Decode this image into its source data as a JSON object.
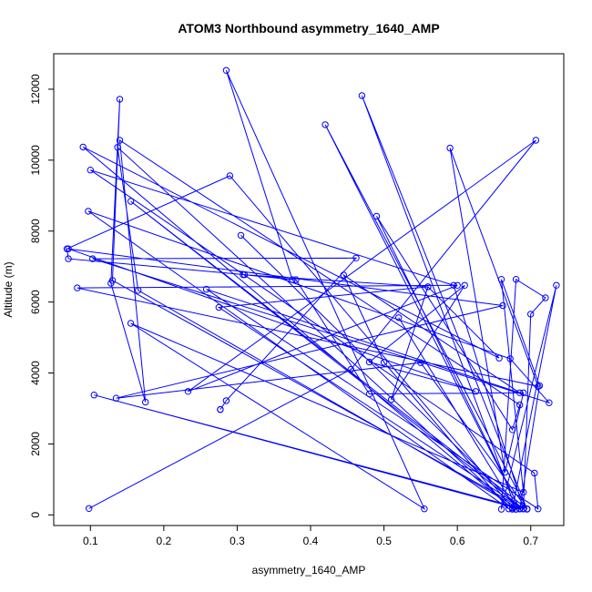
{
  "chart_data": {
    "type": "scatter",
    "title": "ATOM3 Northbound asymmetry_1640_AMP",
    "xlabel": "asymmetry_1640_AMP",
    "ylabel": "Altitude (m)",
    "xlim": [
      0.05,
      0.745
    ],
    "ylim": [
      -300,
      13000
    ],
    "xticks": [
      0.1,
      0.2,
      0.3,
      0.4,
      0.5,
      0.6,
      0.7
    ],
    "xtick_labels": [
      "0.1",
      "0.2",
      "0.3",
      "0.4",
      "0.5",
      "0.6",
      "0.7"
    ],
    "yticks": [
      0,
      2000,
      4000,
      6000,
      8000,
      10000,
      12000
    ],
    "ytick_labels": [
      "0",
      "2000",
      "4000",
      "6000",
      "8000",
      "10000",
      "12000"
    ],
    "grid": false,
    "connected": true,
    "color": "#0000ff",
    "points": [
      [
        0.098,
        180
      ],
      [
        0.455,
        4100
      ],
      [
        0.707,
        10560
      ],
      [
        0.233,
        3480
      ],
      [
        0.6,
        6470
      ],
      [
        0.082,
        6400
      ],
      [
        0.71,
        3620
      ],
      [
        0.59,
        10340
      ],
      [
        0.665,
        1200
      ],
      [
        0.69,
        3440
      ],
      [
        0.48,
        3410
      ],
      [
        0.38,
        6630
      ],
      [
        0.308,
        6770
      ],
      [
        0.56,
        6430
      ],
      [
        0.51,
        3250
      ],
      [
        0.61,
        6470
      ],
      [
        0.48,
        4310
      ],
      [
        0.625,
        3480
      ],
      [
        0.07,
        7500
      ],
      [
        0.662,
        5900
      ],
      [
        0.135,
        3290
      ],
      [
        0.55,
        4290
      ],
      [
        0.695,
        160
      ],
      [
        0.47,
        11820
      ],
      [
        0.68,
        160
      ],
      [
        0.52,
        5560
      ],
      [
        0.68,
        160
      ],
      [
        0.675,
        160
      ],
      [
        0.735,
        6470
      ],
      [
        0.66,
        160
      ],
      [
        0.68,
        6640
      ],
      [
        0.72,
        6120
      ],
      [
        0.7,
        5660
      ],
      [
        0.69,
        170
      ],
      [
        0.13,
        6610
      ],
      [
        0.14,
        11720
      ],
      [
        0.128,
        6530
      ],
      [
        0.175,
        3180
      ],
      [
        0.14,
        10560
      ],
      [
        0.685,
        3100
      ],
      [
        0.675,
        2400
      ],
      [
        0.49,
        8420
      ],
      [
        0.685,
        170
      ],
      [
        0.305,
        7880
      ],
      [
        0.685,
        170
      ],
      [
        0.165,
        6330
      ],
      [
        0.137,
        10360
      ],
      [
        0.675,
        170
      ],
      [
        0.09,
        10370
      ],
      [
        0.657,
        4420
      ],
      [
        0.56,
        6430
      ],
      [
        0.275,
        5850
      ],
      [
        0.69,
        170
      ],
      [
        0.105,
        3380
      ],
      [
        0.685,
        170
      ],
      [
        0.675,
        200
      ],
      [
        0.29,
        9560
      ],
      [
        0.068,
        7500
      ],
      [
        0.07,
        7220
      ],
      [
        0.31,
        6770
      ],
      [
        0.375,
        6630
      ],
      [
        0.285,
        12530
      ],
      [
        0.555,
        170
      ],
      [
        0.155,
        5400
      ],
      [
        0.69,
        640
      ],
      [
        0.66,
        6640
      ],
      [
        0.712,
        3640
      ],
      [
        0.685,
        170
      ],
      [
        0.42,
        11000
      ],
      [
        0.695,
        170
      ],
      [
        0.155,
        8840
      ],
      [
        0.69,
        170
      ],
      [
        0.595,
        6470
      ],
      [
        0.1,
        9720
      ],
      [
        0.705,
        1180
      ],
      [
        0.71,
        170
      ],
      [
        0.258,
        6360
      ],
      [
        0.685,
        3440
      ],
      [
        0.445,
        6760
      ],
      [
        0.5,
        4300
      ],
      [
        0.67,
        170
      ],
      [
        0.097,
        8560
      ],
      [
        0.672,
        4400
      ],
      [
        0.725,
        3160
      ],
      [
        0.103,
        7220
      ],
      [
        0.462,
        7240
      ],
      [
        0.285,
        3220
      ],
      [
        0.277,
        2970
      ],
      [
        0.277,
        2970
      ]
    ]
  }
}
